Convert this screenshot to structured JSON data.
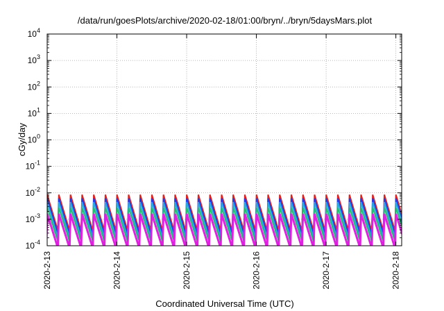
{
  "chart_data": {
    "type": "line",
    "title": "/data/run/goesPlots/archive/2020-02-18/01:00/bryn/../bryn/5daysMars.plot",
    "xlabel": "Coordinated Universal Time (UTC)",
    "ylabel": "cGy/day",
    "yscale": "log",
    "ylim": [
      0.0001,
      10000
    ],
    "xlim": [
      "2020-02-13T00:00",
      "2020-02-18T02:00"
    ],
    "x_ticks": [
      "2020-2-13",
      "2020-2-14",
      "2020-2-15",
      "2020-2-16",
      "2020-2-17",
      "2020-2-18"
    ],
    "y_ticks": [
      {
        "base": "10",
        "exp": "-4"
      },
      {
        "base": "10",
        "exp": "-3"
      },
      {
        "base": "10",
        "exp": "-2"
      },
      {
        "base": "10",
        "exp": "-1"
      },
      {
        "base": "10",
        "exp": "0"
      },
      {
        "base": "10",
        "exp": "1"
      },
      {
        "base": "10",
        "exp": "2"
      },
      {
        "base": "10",
        "exp": "3"
      },
      {
        "base": "10",
        "exp": "4"
      }
    ],
    "grid": true,
    "legend": "none",
    "cycle_hours": 4,
    "series": [
      {
        "color": "#e8201c",
        "stroke": 2,
        "peaks": [
          0.0085,
          0.0085,
          0.0085,
          0.0085,
          0.0085,
          0.0085,
          0.0085,
          0.0085,
          0.0085,
          0.0085,
          0.0085,
          0.0085,
          0.0085,
          0.0085,
          0.0085,
          0.0085,
          0.0085,
          0.0085,
          0.0085,
          0.0085,
          0.0085,
          0.0085,
          0.0085,
          0.0085,
          0.0085,
          0.0085,
          0.0085,
          0.0085,
          0.0085,
          0.0085,
          0.0085,
          0.0085,
          0.0085,
          0.0085,
          0.0085,
          0.0085,
          0.0085,
          0.0085,
          0.015,
          0.014,
          0.011,
          0.01,
          0.009,
          0.013,
          0.012,
          0.011,
          0.01,
          0.009,
          0.009,
          0.009,
          0.009,
          0.013,
          0.012,
          0.012,
          0.011,
          0.011,
          0.011,
          0.011,
          0.011,
          0.011,
          0.011,
          0.011,
          0.011,
          0.011,
          0.011,
          0.011,
          0.011,
          0.011,
          0.011,
          0.011,
          0.011,
          0.011,
          0.011,
          0.011,
          0.011,
          0.011
        ],
        "troughs": [
          0.0004,
          0.0004,
          0.0004,
          0.0004,
          0.0004,
          0.0004,
          0.0004,
          0.0004,
          0.0004,
          0.0004,
          0.0004,
          0.0004,
          0.0004,
          0.0004,
          0.0004,
          0.0004,
          0.0004,
          0.0004,
          0.0004,
          0.0004,
          0.0004,
          0.0004,
          0.0004,
          0.0004,
          0.0004,
          0.0004,
          0.0004,
          0.0004,
          0.0004,
          0.0004,
          0.0004,
          0.0004,
          0.0004,
          0.0004,
          0.0004,
          0.0004,
          0.0004,
          0.0004,
          0.0008,
          0.0008,
          0.0008,
          0.0008,
          0.0008,
          0.0008,
          0.0008,
          0.0008,
          0.0008,
          0.0008,
          0.0008,
          0.0008,
          0.0008,
          0.0008,
          0.0008,
          0.0008,
          0.0008,
          0.0008,
          0.0008,
          0.0008,
          0.0008,
          0.0008,
          0.0008,
          0.0008,
          0.0008,
          0.0008,
          0.0008,
          0.0008,
          0.0008,
          0.0008,
          0.0008,
          0.0008,
          0.0008,
          0.0008,
          0.0008,
          0.0008,
          0.0008,
          0.0008
        ]
      },
      {
        "color": "#1a3cf0",
        "stroke": 2,
        "peaks": [
          0.0062,
          0.0062,
          0.0062,
          0.0062,
          0.0062,
          0.0062,
          0.0062,
          0.0062,
          0.0062,
          0.0062,
          0.0062,
          0.0062,
          0.0062,
          0.0062,
          0.0062,
          0.0062,
          0.0062,
          0.0062,
          0.0062,
          0.0062,
          0.0062,
          0.0062,
          0.0062,
          0.0062,
          0.0062,
          0.0062,
          0.0062,
          0.0062,
          0.0062,
          0.0062,
          0.0062,
          0.0062,
          0.0062,
          0.0062,
          0.0062,
          0.0062,
          0.0062,
          0.0062,
          0.011,
          0.01,
          0.008,
          0.0075,
          0.007,
          0.0095,
          0.009,
          0.008,
          0.0075,
          0.007,
          0.007,
          0.007,
          0.007,
          0.0095,
          0.009,
          0.009,
          0.0085,
          0.0085,
          0.0085,
          0.0085,
          0.0085,
          0.0085,
          0.0085,
          0.0085,
          0.0085,
          0.0085,
          0.0085,
          0.0085,
          0.0085,
          0.0085,
          0.0085,
          0.0085,
          0.0085,
          0.0085,
          0.0085,
          0.0085,
          0.0085,
          0.0085
        ],
        "troughs": [
          0.0003,
          0.0003,
          0.0003,
          0.0003,
          0.0003,
          0.0003,
          0.0003,
          0.0003,
          0.0003,
          0.0003,
          0.0003,
          0.0003,
          0.0003,
          0.0003,
          0.0003,
          0.0003,
          0.0003,
          0.0003,
          0.0003,
          0.0003,
          0.0003,
          0.0003,
          0.0003,
          0.0003,
          0.0003,
          0.0003,
          0.0003,
          0.0003,
          0.0003,
          0.0003,
          0.0003,
          0.0003,
          0.0003,
          0.0003,
          0.0003,
          0.0003,
          0.0003,
          0.0003,
          0.0006,
          0.0006,
          0.0006,
          0.0006,
          0.0006,
          0.0006,
          0.0006,
          0.0006,
          0.0006,
          0.0006,
          0.0006,
          0.0006,
          0.0006,
          0.0006,
          0.0006,
          0.0006,
          0.0006,
          0.0006,
          0.0006,
          0.0006,
          0.0006,
          0.0006,
          0.0006,
          0.0006,
          0.0006,
          0.0006,
          0.0006,
          0.0006,
          0.0006,
          0.0006,
          0.0006,
          0.0006,
          0.0006,
          0.0006,
          0.0006,
          0.0006,
          0.0006,
          0.0006
        ]
      },
      {
        "color": "#2aa8e0",
        "stroke": 2,
        "peaks": [
          0.0045,
          0.0045,
          0.0045,
          0.0045,
          0.0045,
          0.0045,
          0.0045,
          0.0045,
          0.0045,
          0.0045,
          0.0045,
          0.0045,
          0.0045,
          0.0045,
          0.0045,
          0.0045,
          0.0045,
          0.0045,
          0.0045,
          0.0045,
          0.0045,
          0.0045,
          0.0045,
          0.0045,
          0.0045,
          0.0045,
          0.0045,
          0.0045,
          0.0045,
          0.0045,
          0.0045,
          0.0045,
          0.0045,
          0.0045,
          0.0045,
          0.0045,
          0.0045,
          0.0045,
          0.0065,
          0.006,
          0.0055,
          0.005,
          0.005,
          0.006,
          0.006,
          0.0055,
          0.005,
          0.005,
          0.005,
          0.005,
          0.005,
          0.006,
          0.006,
          0.006,
          0.0058,
          0.0058,
          0.0058,
          0.0058,
          0.0058,
          0.0058,
          0.0058,
          0.0058,
          0.0058,
          0.0058,
          0.0058,
          0.0058,
          0.0058,
          0.0058,
          0.0058,
          0.0058,
          0.0058,
          0.0058,
          0.0058,
          0.0058,
          0.0058,
          0.0058
        ],
        "troughs": [
          0.00022,
          0.00022,
          0.00022,
          0.00022,
          0.00022,
          0.00022,
          0.00022,
          0.00022,
          0.00022,
          0.00022,
          0.00022,
          0.00022,
          0.00022,
          0.00022,
          0.00022,
          0.00022,
          0.00022,
          0.00022,
          0.00022,
          0.00022,
          0.00022,
          0.00022,
          0.00022,
          0.00022,
          0.00022,
          0.00022,
          0.00022,
          0.00022,
          0.00022,
          0.00022,
          0.00022,
          0.00022,
          0.00022,
          0.00022,
          0.00022,
          0.00022,
          0.00022,
          0.00022,
          0.0004,
          0.0004,
          0.0004,
          0.0004,
          0.0004,
          0.0004,
          0.0004,
          0.0004,
          0.0004,
          0.0004,
          0.0004,
          0.0004,
          0.0004,
          0.0004,
          0.0004,
          0.0004,
          0.0004,
          0.0004,
          0.0004,
          0.0004,
          0.0004,
          0.0004,
          0.0004,
          0.0004,
          0.0004,
          0.0004,
          0.0004,
          0.0004,
          0.0004,
          0.0004,
          0.0004,
          0.0004,
          0.0004,
          0.0004,
          0.0004,
          0.0004,
          0.0004,
          0.0004
        ]
      },
      {
        "color": "#20c070",
        "stroke": 2,
        "peaks": [
          0.0028,
          0.0028,
          0.0028,
          0.0028,
          0.0028,
          0.0028,
          0.0028,
          0.0028,
          0.0028,
          0.0028,
          0.0028,
          0.0028,
          0.0028,
          0.0028,
          0.0028,
          0.0028,
          0.0028,
          0.0028,
          0.0028,
          0.0028,
          0.0028,
          0.0028,
          0.0028,
          0.0028,
          0.0028,
          0.0028,
          0.0028,
          0.0028,
          0.0028,
          0.0028,
          0.0028,
          0.0028,
          0.0028,
          0.0028,
          0.0028,
          0.0028,
          0.0028,
          0.0028,
          0.0038,
          0.0036,
          0.0034,
          0.0032,
          0.0032,
          0.0036,
          0.0036,
          0.0034,
          0.0032,
          0.0032,
          0.0032,
          0.0032,
          0.0032,
          0.0036,
          0.0036,
          0.0036,
          0.0035,
          0.0035,
          0.0035,
          0.0035,
          0.0035,
          0.0035,
          0.0035,
          0.0035,
          0.0035,
          0.0035,
          0.0035,
          0.0035,
          0.0035,
          0.0035,
          0.0035,
          0.0035,
          0.0035,
          0.0035,
          0.0035,
          0.0035,
          0.0035,
          0.0035
        ],
        "troughs": [
          0.00016,
          0.00016,
          0.00016,
          0.00016,
          0.00016,
          0.00016,
          0.00016,
          0.00016,
          0.00016,
          0.00016,
          0.00016,
          0.00016,
          0.00016,
          0.00016,
          0.00016,
          0.00016,
          0.00016,
          0.00016,
          0.00016,
          0.00016,
          0.00016,
          0.00016,
          0.00016,
          0.00016,
          0.00016,
          0.00016,
          0.00016,
          0.00016,
          0.00016,
          0.00016,
          0.00016,
          0.00016,
          0.00016,
          0.00016,
          0.00016,
          0.00016,
          0.00016,
          0.00016,
          0.00025,
          0.00025,
          0.00025,
          0.00025,
          0.00025,
          0.00025,
          0.00025,
          0.00025,
          0.00025,
          0.00025,
          0.00025,
          0.00025,
          0.00025,
          0.00025,
          0.00025,
          0.00025,
          0.00025,
          0.00025,
          0.00025,
          0.00025,
          0.00025,
          0.00025,
          0.00025,
          0.00025,
          0.00025,
          0.00025,
          0.00025,
          0.00025,
          0.00025,
          0.00025,
          0.00025,
          0.00025,
          0.00025,
          0.00025,
          0.00025,
          0.00025,
          0.00025,
          0.00025
        ]
      },
      {
        "color": "#e020e0",
        "stroke": 3,
        "peaks": [
          0.0016,
          0.0016,
          0.0016,
          0.0016,
          0.0016,
          0.0016,
          0.0016,
          0.0016,
          0.0016,
          0.0016,
          0.0016,
          0.0016,
          0.0016,
          0.0016,
          0.0016,
          0.0016,
          0.0016,
          0.0016,
          0.0016,
          0.0016,
          0.0016,
          0.0016,
          0.0016,
          0.0016,
          0.0016,
          0.0016,
          0.0016,
          0.0016,
          0.0016,
          0.0016,
          0.0016,
          0.0016,
          0.0016,
          0.0016,
          0.0016,
          0.0016,
          0.0016,
          0.0016,
          0.0022,
          0.0021,
          0.002,
          0.0019,
          0.0019,
          0.0021,
          0.0021,
          0.002,
          0.0019,
          0.0019,
          0.0019,
          0.0019,
          0.0019,
          0.0021,
          0.0021,
          0.0021,
          0.002,
          0.002,
          0.002,
          0.002,
          0.002,
          0.002,
          0.002,
          0.002,
          0.002,
          0.002,
          0.002,
          0.002,
          0.002,
          0.002,
          0.002,
          0.002,
          0.002,
          0.002,
          0.002,
          0.002,
          0.002,
          0.002
        ],
        "troughs": [
          9e-05,
          9e-05,
          9e-05,
          9e-05,
          9e-05,
          9e-05,
          9e-05,
          9e-05,
          9e-05,
          9e-05,
          9e-05,
          9e-05,
          9e-05,
          9e-05,
          9e-05,
          9e-05,
          9e-05,
          9e-05,
          9e-05,
          9e-05,
          9e-05,
          9e-05,
          9e-05,
          9e-05,
          9e-05,
          9e-05,
          9e-05,
          9e-05,
          9e-05,
          9e-05,
          9e-05,
          9e-05,
          9e-05,
          9e-05,
          9e-05,
          9e-05,
          9e-05,
          9e-05,
          0.00011,
          0.00011,
          0.00011,
          0.00011,
          0.00011,
          0.00011,
          0.00011,
          0.00011,
          0.00011,
          0.00011,
          0.00011,
          0.00011,
          0.00011,
          0.00011,
          0.00011,
          0.00011,
          0.00011,
          0.00011,
          0.00011,
          0.00011,
          0.00011,
          0.00011,
          0.00011,
          0.00011,
          0.00011,
          0.00011,
          0.00011,
          0.00011,
          0.00011,
          0.00011,
          0.00011,
          0.00011,
          0.00011,
          0.00011,
          0.00011,
          0.00011,
          0.00011,
          0.00011
        ]
      }
    ]
  }
}
